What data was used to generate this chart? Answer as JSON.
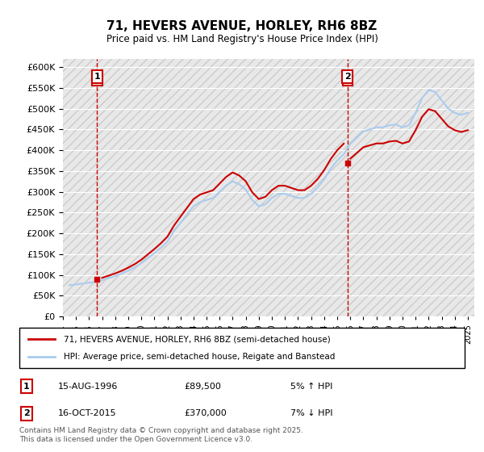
{
  "title": "71, HEVERS AVENUE, HORLEY, RH6 8BZ",
  "subtitle": "Price paid vs. HM Land Registry's House Price Index (HPI)",
  "legend_line1": "71, HEVERS AVENUE, HORLEY, RH6 8BZ (semi-detached house)",
  "legend_line2": "HPI: Average price, semi-detached house, Reigate and Banstead",
  "annotation1_label": "1",
  "annotation1_date": "15-AUG-1996",
  "annotation1_price": "£89,500",
  "annotation1_hpi": "5% ↑ HPI",
  "annotation2_label": "2",
  "annotation2_date": "16-OCT-2015",
  "annotation2_price": "£370,000",
  "annotation2_hpi": "7% ↓ HPI",
  "footer": "Contains HM Land Registry data © Crown copyright and database right 2025.\nThis data is licensed under the Open Government Licence v3.0.",
  "ylim": [
    0,
    620000
  ],
  "ytick_step": 50000,
  "bg_color": "#ffffff",
  "plot_bg_color": "#f0f0f0",
  "grid_color": "#ffffff",
  "hatch_color": "#d8d8d8",
  "red_color": "#cc0000",
  "blue_color": "#aaccee",
  "sale1_year": 1996.62,
  "sale1_price": 89500,
  "sale2_year": 2015.79,
  "sale2_price": 370000,
  "hpi_years": [
    1994.5,
    1995.0,
    1995.5,
    1996.0,
    1996.5,
    1997.0,
    1997.5,
    1998.0,
    1998.5,
    1999.0,
    1999.5,
    2000.0,
    2000.5,
    2001.0,
    2001.5,
    2002.0,
    2002.5,
    2003.0,
    2003.5,
    2004.0,
    2004.5,
    2005.0,
    2005.5,
    2006.0,
    2006.5,
    2007.0,
    2007.5,
    2008.0,
    2008.5,
    2009.0,
    2009.5,
    2010.0,
    2010.5,
    2011.0,
    2011.5,
    2012.0,
    2012.5,
    2013.0,
    2013.5,
    2014.0,
    2014.5,
    2015.0,
    2015.5,
    2016.0,
    2016.5,
    2017.0,
    2017.5,
    2018.0,
    2018.5,
    2019.0,
    2019.5,
    2020.0,
    2020.5,
    2021.0,
    2021.5,
    2022.0,
    2022.5,
    2023.0,
    2023.5,
    2024.0,
    2024.5,
    2025.0
  ],
  "hpi_values": [
    75000,
    77000,
    79000,
    81000,
    83000,
    87000,
    92000,
    97000,
    103000,
    110000,
    118000,
    128000,
    140000,
    152000,
    165000,
    180000,
    205000,
    225000,
    245000,
    265000,
    275000,
    280000,
    285000,
    300000,
    315000,
    325000,
    318000,
    305000,
    280000,
    265000,
    270000,
    285000,
    295000,
    295000,
    290000,
    285000,
    285000,
    295000,
    310000,
    330000,
    355000,
    375000,
    390000,
    415000,
    430000,
    445000,
    450000,
    455000,
    455000,
    460000,
    462000,
    455000,
    460000,
    490000,
    525000,
    545000,
    540000,
    520000,
    500000,
    490000,
    485000,
    490000
  ],
  "sale_years": [
    1996.62,
    2015.79
  ],
  "sale_prices": [
    89500,
    370000
  ],
  "xmin": 1994,
  "xmax": 2025.5
}
